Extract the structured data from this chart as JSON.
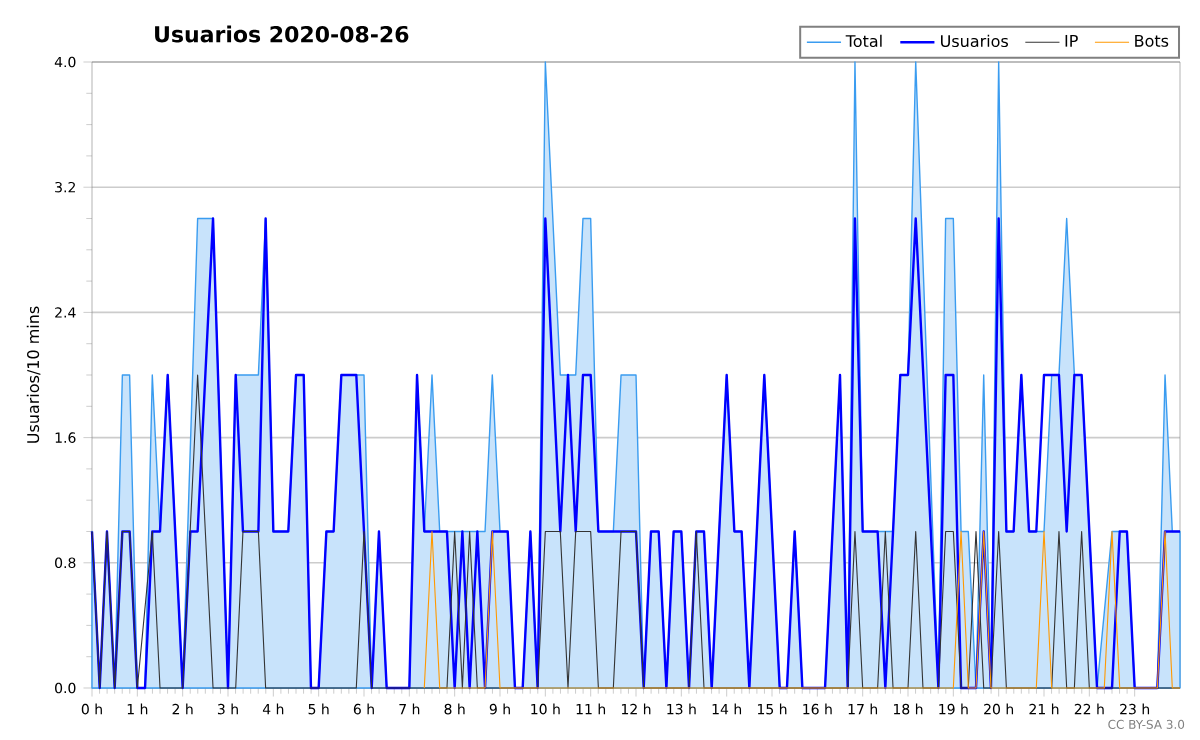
{
  "chart_data": {
    "type": "line",
    "title": "Usuarios  2020-08-26",
    "ylabel": "Usuarios/10 mins",
    "xlim": [
      0,
      24
    ],
    "ylim": [
      0,
      4
    ],
    "xticks": [
      {
        "value": 0,
        "label": "0 h"
      },
      {
        "value": 1,
        "label": "1 h"
      },
      {
        "value": 2,
        "label": "2 h"
      },
      {
        "value": 3,
        "label": "3 h"
      },
      {
        "value": 4,
        "label": "4 h"
      },
      {
        "value": 5,
        "label": "5 h"
      },
      {
        "value": 6,
        "label": "6 h"
      },
      {
        "value": 7,
        "label": "7 h"
      },
      {
        "value": 8,
        "label": "8 h"
      },
      {
        "value": 9,
        "label": "9 h"
      },
      {
        "value": 10,
        "label": "10 h"
      },
      {
        "value": 11,
        "label": "11 h"
      },
      {
        "value": 12,
        "label": "12 h"
      },
      {
        "value": 13,
        "label": "13 h"
      },
      {
        "value": 14,
        "label": "14 h"
      },
      {
        "value": 15,
        "label": "15 h"
      },
      {
        "value": 16,
        "label": "16 h"
      },
      {
        "value": 17,
        "label": "17 h"
      },
      {
        "value": 18,
        "label": "18 h"
      },
      {
        "value": 19,
        "label": "19 h"
      },
      {
        "value": 20,
        "label": "20 h"
      },
      {
        "value": 21,
        "label": "21 h"
      },
      {
        "value": 22,
        "label": "22 h"
      },
      {
        "value": 23,
        "label": "23 h"
      }
    ],
    "yticks": [
      {
        "value": 0,
        "label": "0.0"
      },
      0.8,
      1.6,
      2.4,
      3.2,
      {
        "value": 4,
        "label": "4.0"
      }
    ],
    "grid": "y",
    "legend": "top right",
    "marker": "none",
    "annotations": [
      "CC BY-SA 3.0"
    ],
    "series": [
      {
        "name": "Total",
        "type": "area",
        "color": "#3a9cf0",
        "x": [
          0,
          0.17,
          0.33,
          0.5,
          0.67,
          0.83,
          1,
          1.17,
          1.33,
          1.5,
          1.67,
          2,
          2.33,
          2.67,
          3,
          3.17,
          3.67,
          3.83,
          4,
          4.33,
          4.5,
          4.67,
          4.83,
          5,
          5.17,
          5.33,
          5.5,
          6,
          6.17,
          6.33,
          6.5,
          7,
          7.17,
          7.33,
          7.5,
          7.67,
          7.83,
          8.67,
          8.83,
          9,
          9.17,
          9.33,
          9.5,
          9.67,
          9.83,
          10,
          10.33,
          10.67,
          10.83,
          11,
          11.17,
          11.5,
          11.67,
          12,
          12.17,
          12.33,
          12.5,
          12.67,
          12.83,
          13,
          13.17,
          13.33,
          13.5,
          13.67,
          14,
          14.17,
          14.33,
          14.5,
          14.83,
          15.17,
          15.33,
          15.5,
          15.67,
          16.17,
          16.5,
          16.67,
          16.83,
          17,
          17.33,
          17.67,
          17.83,
          18,
          18.17,
          18.67,
          18.83,
          19,
          19.17,
          19.33,
          19.5,
          19.67,
          19.83,
          20,
          20.17,
          20.33,
          20.5,
          20.67,
          21,
          21.17,
          21.33,
          21.5,
          21.67,
          21.83,
          22,
          22.17,
          22.5,
          22.83,
          23,
          23.5,
          23.67,
          23.83,
          24
        ],
        "values": [
          1,
          0,
          1,
          0,
          2,
          2,
          0,
          0,
          2,
          1,
          2,
          0,
          3,
          3,
          0,
          2,
          2,
          3,
          1,
          1,
          2,
          2,
          0,
          0,
          1,
          1,
          2,
          2,
          0,
          1,
          0,
          0,
          2,
          1,
          2,
          1,
          1,
          1,
          2,
          1,
          1,
          0,
          0,
          1,
          0,
          4,
          2,
          2,
          3,
          3,
          1,
          1,
          2,
          2,
          0,
          1,
          1,
          0,
          1,
          1,
          0,
          1,
          1,
          0,
          2,
          1,
          1,
          0,
          2,
          0,
          0,
          1,
          0,
          0,
          2,
          0,
          4,
          1,
          1,
          1,
          2,
          2,
          4,
          0,
          3,
          3,
          1,
          1,
          0,
          2,
          0,
          4,
          1,
          1,
          2,
          1,
          1,
          2,
          2,
          3,
          2,
          2,
          1,
          0,
          1,
          1,
          0,
          0,
          2,
          1,
          1
        ]
      },
      {
        "name": "Usuarios",
        "color": "#0000ff",
        "x": [
          0,
          0.17,
          0.33,
          0.5,
          0.67,
          0.83,
          1,
          1.17,
          1.33,
          1.5,
          1.67,
          2,
          2.17,
          2.33,
          2.67,
          3,
          3.17,
          3.33,
          3.67,
          3.83,
          4,
          4.33,
          4.5,
          4.67,
          4.83,
          5,
          5.17,
          5.33,
          5.5,
          5.83,
          6.17,
          6.33,
          6.5,
          7,
          7.17,
          7.33,
          7.67,
          7.83,
          8,
          8.17,
          8.33,
          8.5,
          8.67,
          8.83,
          9.17,
          9.33,
          9.5,
          9.67,
          9.83,
          10,
          10.33,
          10.5,
          10.67,
          10.83,
          11,
          11.17,
          12,
          12.17,
          12.33,
          12.5,
          12.67,
          12.83,
          13,
          13.17,
          13.33,
          13.5,
          13.67,
          14,
          14.17,
          14.33,
          14.5,
          14.83,
          15.17,
          15.33,
          15.5,
          15.67,
          16.17,
          16.5,
          16.67,
          16.83,
          17,
          17.33,
          17.5,
          17.67,
          17.83,
          18,
          18.17,
          18.67,
          18.83,
          19,
          19.17,
          19.5,
          19.67,
          19.83,
          20,
          20.17,
          20.33,
          20.5,
          20.67,
          20.83,
          21,
          21.33,
          21.5,
          21.67,
          21.83,
          22,
          22.17,
          22.5,
          22.67,
          22.83,
          23,
          23.5,
          23.67,
          24
        ],
        "values": [
          1,
          0,
          1,
          0,
          1,
          1,
          0,
          0,
          1,
          1,
          2,
          0,
          1,
          1,
          3,
          0,
          2,
          1,
          1,
          3,
          1,
          1,
          2,
          2,
          0,
          0,
          1,
          1,
          2,
          2,
          0,
          1,
          0,
          0,
          2,
          1,
          1,
          1,
          0,
          1,
          0,
          1,
          0,
          1,
          1,
          0,
          0,
          1,
          0,
          3,
          1,
          2,
          1,
          2,
          2,
          1,
          1,
          0,
          1,
          1,
          0,
          1,
          1,
          0,
          1,
          1,
          0,
          2,
          1,
          1,
          0,
          2,
          0,
          0,
          1,
          0,
          0,
          2,
          0,
          3,
          1,
          1,
          0,
          1,
          2,
          2,
          3,
          0,
          2,
          2,
          0,
          0,
          1,
          0,
          3,
          1,
          1,
          2,
          1,
          1,
          2,
          2,
          1,
          2,
          2,
          1,
          0,
          0,
          1,
          1,
          0,
          0,
          1,
          1
        ]
      },
      {
        "name": "IP",
        "color": "#333333",
        "x": [
          0,
          0.17,
          0.33,
          0.5,
          0.67,
          0.83,
          1,
          1.33,
          1.5,
          2,
          2.33,
          2.67,
          3.17,
          3.33,
          3.67,
          3.83,
          5.83,
          6,
          6.17,
          7.83,
          8,
          8.17,
          8.33,
          8.5,
          9.83,
          10,
          10.33,
          10.5,
          10.67,
          11,
          11.17,
          11.5,
          11.67,
          12,
          12.17,
          13.17,
          13.33,
          13.5,
          16.67,
          16.83,
          17,
          17.33,
          17.5,
          17.67,
          18,
          18.17,
          18.33,
          18.67,
          18.83,
          19,
          19.17,
          19.33,
          19.5,
          19.67,
          19.83,
          20,
          20.17,
          21.17,
          21.33,
          21.5,
          21.67,
          21.83,
          22,
          24
        ],
        "values": [
          1,
          0,
          1,
          0,
          1,
          1,
          0,
          1,
          0,
          0,
          2,
          0,
          0,
          1,
          1,
          0,
          0,
          1,
          0,
          0,
          1,
          0,
          1,
          0,
          0,
          1,
          1,
          0,
          1,
          1,
          0,
          0,
          1,
          1,
          0,
          0,
          1,
          0,
          0,
          1,
          0,
          0,
          1,
          0,
          0,
          1,
          0,
          0,
          1,
          1,
          0,
          0,
          1,
          0,
          0,
          1,
          0,
          0,
          1,
          0,
          0,
          1,
          0,
          0
        ]
      },
      {
        "name": "Bots",
        "color": "#ff9900",
        "x": [
          7.33,
          7.5,
          7.67,
          8.67,
          8.83,
          9,
          19,
          19.17,
          19.33,
          19.5,
          19.67,
          19.83,
          20.83,
          21,
          21.17,
          22.33,
          22.5,
          22.67,
          23.5,
          23.67,
          23.83,
          24
        ],
        "values": [
          0,
          1,
          0,
          0,
          1,
          0,
          0,
          1,
          0,
          0,
          1,
          0,
          0,
          1,
          0,
          0,
          1,
          0,
          0,
          1,
          0,
          0
        ]
      }
    ]
  }
}
